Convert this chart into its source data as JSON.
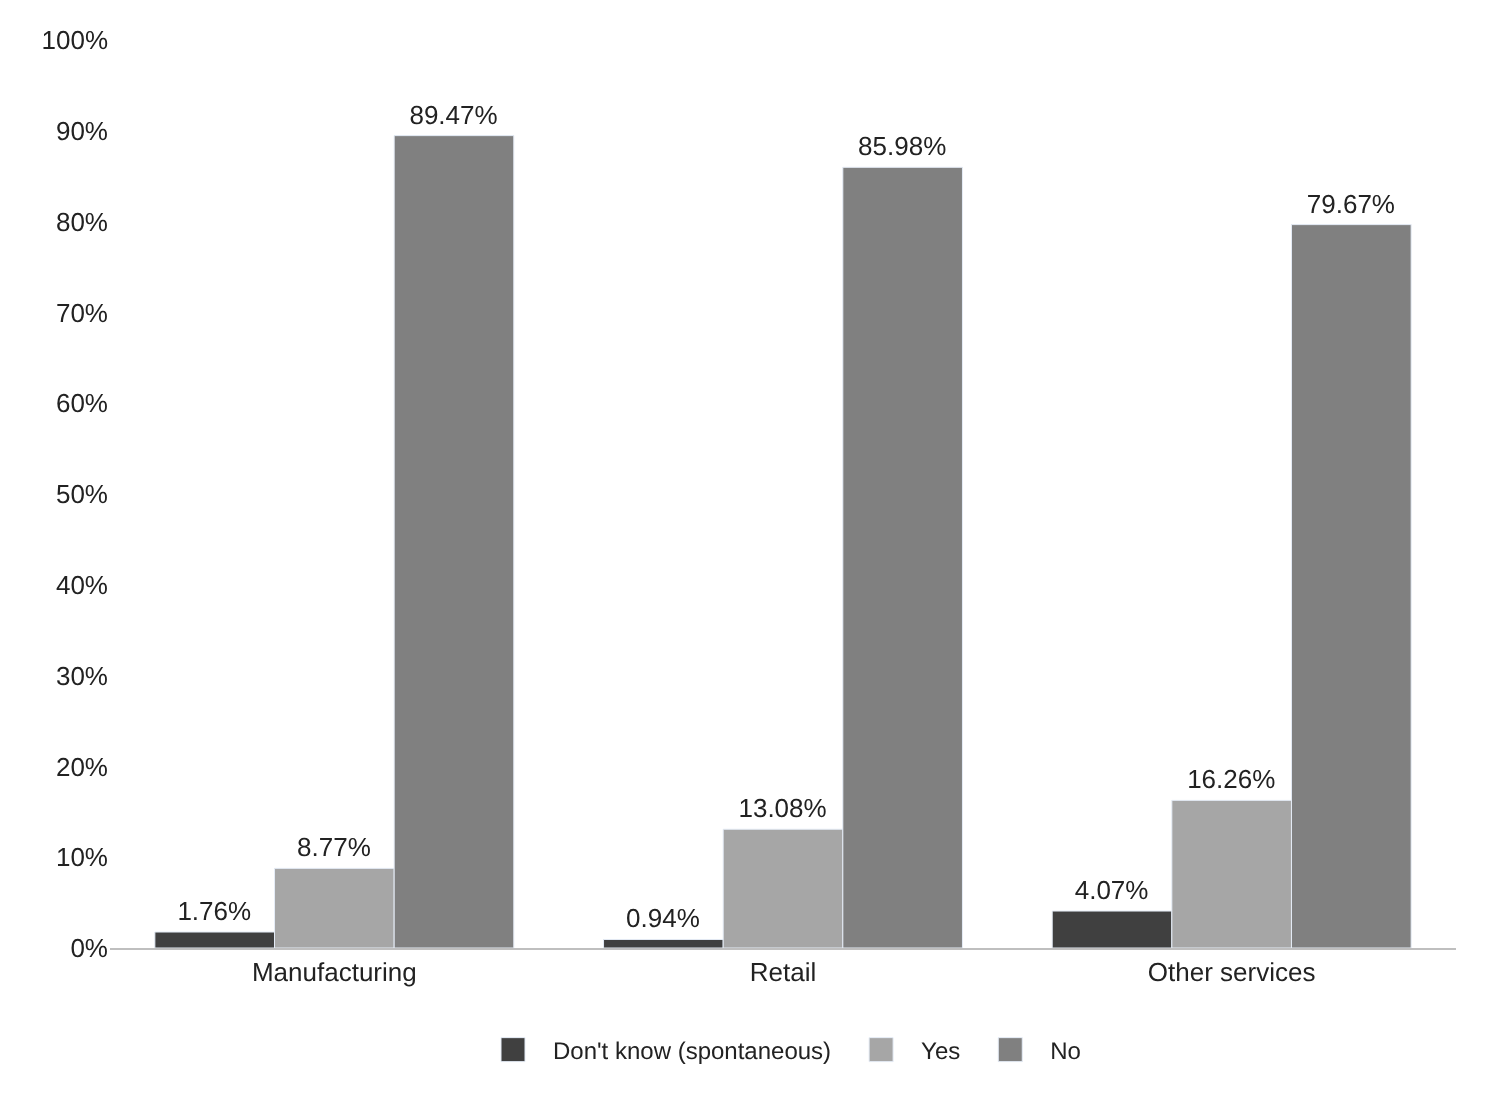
{
  "chart_data": {
    "type": "bar",
    "categories": [
      "Manufacturing",
      "Retail",
      "Other services"
    ],
    "series": [
      {
        "name": "Don't know (spontaneous)",
        "color": "#404040",
        "values": [
          1.76,
          0.94,
          4.07
        ],
        "value_labels": [
          "1.76%",
          "0.94%",
          "4.07%"
        ]
      },
      {
        "name": "Yes",
        "color": "#a6a6a6",
        "values": [
          8.77,
          13.08,
          16.26
        ],
        "value_labels": [
          "8.77%",
          "13.08%",
          "16.26%"
        ]
      },
      {
        "name": "No",
        "color": "#808080",
        "values": [
          89.47,
          85.98,
          79.67
        ],
        "value_labels": [
          "89.47%",
          "85.98%",
          "79.67%"
        ]
      }
    ],
    "ylim": [
      0,
      100
    ],
    "yticks": [
      {
        "value": 0,
        "label": "0%"
      },
      {
        "value": 10,
        "label": "10%"
      },
      {
        "value": 20,
        "label": "20%"
      },
      {
        "value": 30,
        "label": "30%"
      },
      {
        "value": 40,
        "label": "40%"
      },
      {
        "value": 50,
        "label": "50%"
      },
      {
        "value": 60,
        "label": "60%"
      },
      {
        "value": 70,
        "label": "70%"
      },
      {
        "value": 80,
        "label": "80%"
      },
      {
        "value": 90,
        "label": "90%"
      },
      {
        "value": 100,
        "label": "100%"
      }
    ],
    "grid": false,
    "legend": "bottom"
  }
}
